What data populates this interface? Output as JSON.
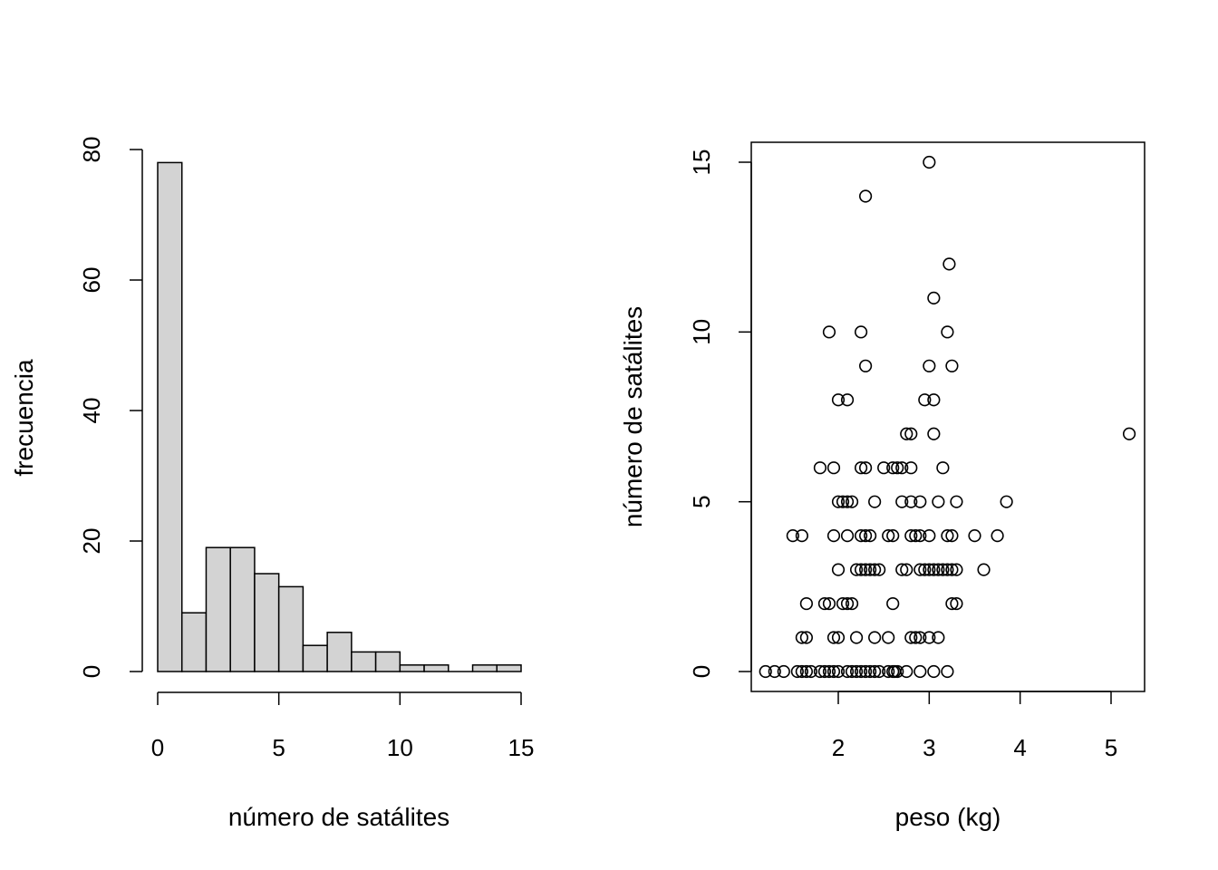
{
  "chart_data": [
    {
      "type": "bar",
      "subtype": "histogram",
      "title": "",
      "xlabel": "número de satálites",
      "ylabel": "frecuencia",
      "bin_width": 1,
      "bins": [
        {
          "from": 0,
          "to": 1,
          "count": 78
        },
        {
          "from": 1,
          "to": 2,
          "count": 9
        },
        {
          "from": 2,
          "to": 3,
          "count": 19
        },
        {
          "from": 3,
          "to": 4,
          "count": 19
        },
        {
          "from": 4,
          "to": 5,
          "count": 15
        },
        {
          "from": 5,
          "to": 6,
          "count": 13
        },
        {
          "from": 6,
          "to": 7,
          "count": 4
        },
        {
          "from": 7,
          "to": 8,
          "count": 6
        },
        {
          "from": 8,
          "to": 9,
          "count": 3
        },
        {
          "from": 9,
          "to": 10,
          "count": 3
        },
        {
          "from": 10,
          "to": 11,
          "count": 1
        },
        {
          "from": 11,
          "to": 12,
          "count": 1
        },
        {
          "from": 12,
          "to": 13,
          "count": 0
        },
        {
          "from": 13,
          "to": 14,
          "count": 1
        },
        {
          "from": 14,
          "to": 15,
          "count": 1
        }
      ],
      "xlim": [
        0,
        15
      ],
      "ylim": [
        0,
        80
      ],
      "x_ticks": [
        0,
        5,
        10,
        15
      ],
      "y_ticks": [
        0,
        20,
        40,
        60,
        80
      ],
      "bar_fill": "#d3d3d3",
      "bar_stroke": "#000000",
      "grid": false
    },
    {
      "type": "scatter",
      "title": "",
      "xlabel": "peso (kg)",
      "ylabel": "número de satálites",
      "xlim": [
        1.2,
        5.2
      ],
      "ylim": [
        0,
        15
      ],
      "x_ticks": [
        2,
        3,
        4,
        5
      ],
      "y_ticks": [
        0,
        5,
        10,
        15
      ],
      "marker": "open-circle",
      "grid": false,
      "points": [
        [
          1.2,
          0
        ],
        [
          1.3,
          0
        ],
        [
          1.4,
          0
        ],
        [
          1.55,
          0
        ],
        [
          1.6,
          0
        ],
        [
          1.65,
          0
        ],
        [
          1.7,
          0
        ],
        [
          1.8,
          0
        ],
        [
          1.85,
          0
        ],
        [
          1.9,
          0
        ],
        [
          1.95,
          0
        ],
        [
          2.0,
          0
        ],
        [
          2.1,
          0
        ],
        [
          2.15,
          0
        ],
        [
          2.2,
          0
        ],
        [
          2.25,
          0
        ],
        [
          2.3,
          0
        ],
        [
          2.35,
          0
        ],
        [
          2.4,
          0
        ],
        [
          2.45,
          0
        ],
        [
          2.55,
          0
        ],
        [
          2.6,
          0
        ],
        [
          2.62,
          0
        ],
        [
          2.65,
          0
        ],
        [
          2.75,
          0
        ],
        [
          2.9,
          0
        ],
        [
          3.05,
          0
        ],
        [
          3.2,
          0
        ],
        [
          1.6,
          1
        ],
        [
          1.65,
          1
        ],
        [
          1.95,
          1
        ],
        [
          2.0,
          1
        ],
        [
          2.2,
          1
        ],
        [
          2.4,
          1
        ],
        [
          2.55,
          1
        ],
        [
          2.8,
          1
        ],
        [
          2.85,
          1
        ],
        [
          2.9,
          1
        ],
        [
          3.0,
          1
        ],
        [
          3.1,
          1
        ],
        [
          1.65,
          2
        ],
        [
          1.85,
          2
        ],
        [
          1.9,
          2
        ],
        [
          2.05,
          2
        ],
        [
          2.1,
          2
        ],
        [
          2.15,
          2
        ],
        [
          2.6,
          2
        ],
        [
          3.25,
          2
        ],
        [
          3.3,
          2
        ],
        [
          2.0,
          3
        ],
        [
          2.2,
          3
        ],
        [
          2.25,
          3
        ],
        [
          2.3,
          3
        ],
        [
          2.35,
          3
        ],
        [
          2.4,
          3
        ],
        [
          2.45,
          3
        ],
        [
          2.7,
          3
        ],
        [
          2.75,
          3
        ],
        [
          2.9,
          3
        ],
        [
          2.95,
          3
        ],
        [
          3.0,
          3
        ],
        [
          3.05,
          3
        ],
        [
          3.1,
          3
        ],
        [
          3.15,
          3
        ],
        [
          3.2,
          3
        ],
        [
          3.25,
          3
        ],
        [
          3.3,
          3
        ],
        [
          3.6,
          3
        ],
        [
          1.5,
          4
        ],
        [
          1.6,
          4
        ],
        [
          1.95,
          4
        ],
        [
          2.1,
          4
        ],
        [
          2.25,
          4
        ],
        [
          2.3,
          4
        ],
        [
          2.35,
          4
        ],
        [
          2.55,
          4
        ],
        [
          2.6,
          4
        ],
        [
          2.8,
          4
        ],
        [
          2.85,
          4
        ],
        [
          2.9,
          4
        ],
        [
          3.0,
          4
        ],
        [
          3.2,
          4
        ],
        [
          3.25,
          4
        ],
        [
          3.5,
          4
        ],
        [
          3.75,
          4
        ],
        [
          2.0,
          5
        ],
        [
          2.05,
          5
        ],
        [
          2.1,
          5
        ],
        [
          2.15,
          5
        ],
        [
          2.4,
          5
        ],
        [
          2.7,
          5
        ],
        [
          2.8,
          5
        ],
        [
          2.9,
          5
        ],
        [
          3.1,
          5
        ],
        [
          3.3,
          5
        ],
        [
          3.85,
          5
        ],
        [
          1.8,
          6
        ],
        [
          1.95,
          6
        ],
        [
          2.25,
          6
        ],
        [
          2.3,
          6
        ],
        [
          2.5,
          6
        ],
        [
          2.6,
          6
        ],
        [
          2.65,
          6
        ],
        [
          2.7,
          6
        ],
        [
          2.8,
          6
        ],
        [
          3.15,
          6
        ],
        [
          2.75,
          7
        ],
        [
          2.8,
          7
        ],
        [
          3.05,
          7
        ],
        [
          5.2,
          7
        ],
        [
          2.0,
          8
        ],
        [
          2.1,
          8
        ],
        [
          2.95,
          8
        ],
        [
          3.05,
          8
        ],
        [
          2.3,
          9
        ],
        [
          3.0,
          9
        ],
        [
          3.25,
          9
        ],
        [
          1.9,
          10
        ],
        [
          2.25,
          10
        ],
        [
          3.2,
          10
        ],
        [
          3.05,
          11
        ],
        [
          3.22,
          12
        ],
        [
          2.3,
          14
        ],
        [
          3.0,
          15
        ]
      ]
    }
  ]
}
